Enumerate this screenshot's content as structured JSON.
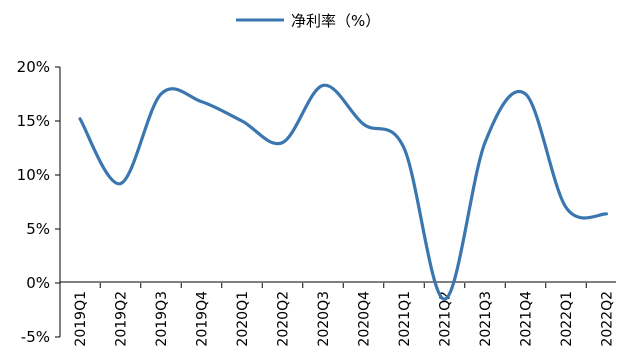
{
  "chart_data": {
    "type": "line",
    "categories": [
      "2019Q1",
      "2019Q2",
      "2019Q3",
      "2019Q4",
      "2020Q1",
      "2020Q2",
      "2020Q3",
      "2020Q4",
      "2021Q1",
      "2021Q2",
      "2021Q3",
      "2021Q4",
      "2022Q1",
      "2022Q2"
    ],
    "series": [
      {
        "name": "净利率（%）",
        "values": [
          15.2,
          9.2,
          17.5,
          16.8,
          15.0,
          13.0,
          18.3,
          14.7,
          12.5,
          -1.5,
          13.0,
          17.5,
          7.0,
          6.4
        ],
        "color": "#3A76AF"
      }
    ],
    "y_ticks": [
      "-5%",
      "0%",
      "5%",
      "10%",
      "15%",
      "20%"
    ],
    "ylim": [
      -5,
      20
    ],
    "legend": "top-center",
    "grid": false
  }
}
